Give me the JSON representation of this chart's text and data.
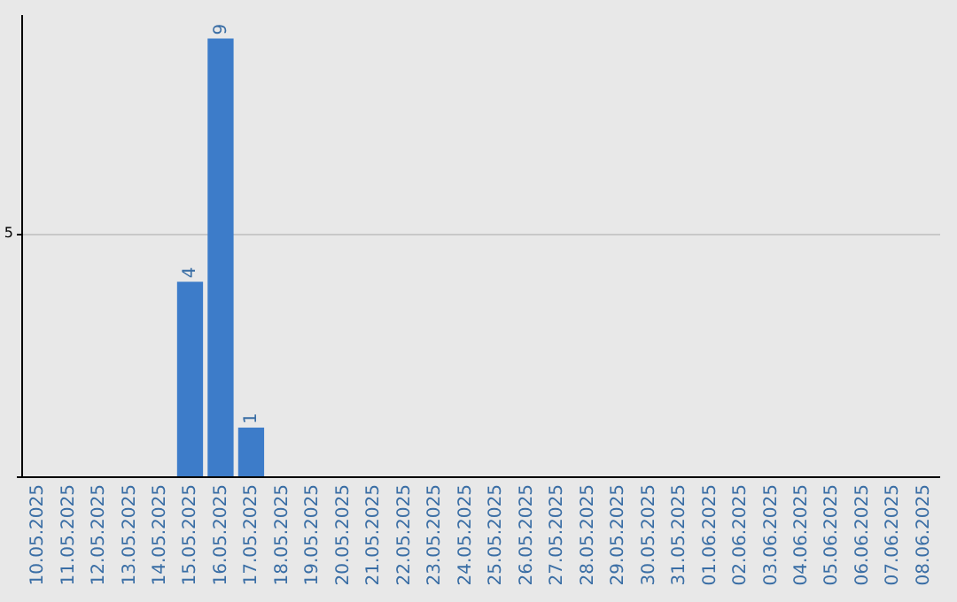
{
  "chart_data": {
    "type": "bar",
    "categories": [
      "10.05.2025",
      "11.05.2025",
      "12.05.2025",
      "13.05.2025",
      "14.05.2025",
      "15.05.2025",
      "16.05.2025",
      "17.05.2025",
      "18.05.2025",
      "19.05.2025",
      "20.05.2025",
      "21.05.2025",
      "22.05.2025",
      "23.05.2025",
      "24.05.2025",
      "25.05.2025",
      "26.05.2025",
      "27.05.2025",
      "28.05.2025",
      "29.05.2025",
      "30.05.2025",
      "31.05.2025",
      "01.06.2025",
      "02.06.2025",
      "03.06.2025",
      "04.06.2025",
      "05.06.2025",
      "06.06.2025",
      "07.06.2025",
      "08.06.2025"
    ],
    "values": [
      0,
      0,
      0,
      0,
      0,
      4,
      9,
      1,
      0,
      0,
      0,
      0,
      0,
      0,
      0,
      0,
      0,
      0,
      0,
      0,
      0,
      0,
      0,
      0,
      0,
      0,
      0,
      0,
      0,
      0
    ],
    "value_labels": [
      null,
      null,
      null,
      null,
      null,
      "4",
      "9",
      "1",
      null,
      null,
      null,
      null,
      null,
      null,
      null,
      null,
      null,
      null,
      null,
      null,
      null,
      null,
      null,
      null,
      null,
      null,
      null,
      null,
      null,
      null
    ],
    "color": "#3d7cc9",
    "ylim": [
      0,
      9.5
    ],
    "yticks": [
      {
        "value": 0,
        "label": null
      },
      5
    ],
    "grid": "y"
  }
}
